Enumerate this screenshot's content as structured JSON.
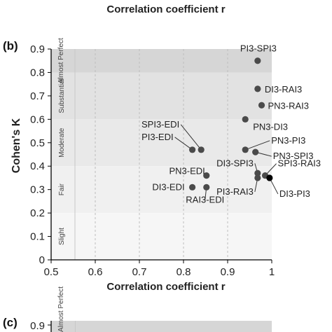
{
  "chart_data": [
    {
      "type": "scatter",
      "panel_label": "",
      "title": "",
      "xlabel": "Correlation coefficient r",
      "ylabel": "",
      "note": "top of image shows only the x-axis label of the panel above"
    },
    {
      "type": "scatter",
      "panel_label": "(b)",
      "title": "",
      "xlabel": "Correlation coefficient r",
      "ylabel": "Cohen's K",
      "xlim": [
        0.5,
        1.0
      ],
      "ylim": [
        0.0,
        0.9
      ],
      "x_ticks": [
        "0.5",
        "0.6",
        "0.7",
        "0.8",
        "0.9",
        "1"
      ],
      "y_ticks": [
        "0.9",
        "0.8",
        "0.7",
        "0.6",
        "0.5",
        "0.4",
        "0.3",
        "0.2",
        "0.1",
        "0"
      ],
      "grid": "vertical dashed at each x tick",
      "agreement_bands": [
        {
          "label": "Almost Perfect",
          "from": 0.8,
          "to": 0.9,
          "color": "#d6d6d6"
        },
        {
          "label": "Substantial",
          "from": 0.6,
          "to": 0.8,
          "color": "#e2e2e2"
        },
        {
          "label": "Moderate",
          "from": 0.4,
          "to": 0.6,
          "color": "#e9e9e9"
        },
        {
          "label": "Fair",
          "from": 0.2,
          "to": 0.4,
          "color": "#f0f0f0"
        },
        {
          "label": "Slight",
          "from": 0.0,
          "to": 0.2,
          "color": "#f6f6f6"
        }
      ],
      "points": [
        {
          "label": "PI3-SPI3",
          "x": 0.968,
          "y": 0.85
        },
        {
          "label": "DI3-RAI3",
          "x": 0.968,
          "y": 0.73
        },
        {
          "label": "PN3-RAI3",
          "x": 0.977,
          "y": 0.66
        },
        {
          "label": "PN3-DI3",
          "x": 0.94,
          "y": 0.6
        },
        {
          "label": "PN3-PI3",
          "x": 0.94,
          "y": 0.47
        },
        {
          "label": "PN3-SPI3",
          "x": 0.963,
          "y": 0.46
        },
        {
          "label": "DI3-SPI3",
          "x": 0.968,
          "y": 0.37
        },
        {
          "label": "SPI3-RAI3",
          "x": 0.985,
          "y": 0.36
        },
        {
          "label": "DI3-PI3",
          "x": 0.995,
          "y": 0.35
        },
        {
          "label": "PI3-RAI3",
          "x": 0.968,
          "y": 0.35
        },
        {
          "label": "SPI3-EDI",
          "x": 0.84,
          "y": 0.47
        },
        {
          "label": "PI3-EDI",
          "x": 0.82,
          "y": 0.47
        },
        {
          "label": "PN3-EDI",
          "x": 0.852,
          "y": 0.36
        },
        {
          "label": "DI3-EDI",
          "x": 0.82,
          "y": 0.31
        },
        {
          "label": "RAI3-EDI",
          "x": 0.852,
          "y": 0.31
        }
      ],
      "colors": {
        "point": "#4a4a4a",
        "highlight_point": "#000000",
        "axis": "#000000",
        "text": "#222222"
      }
    },
    {
      "type": "scatter",
      "panel_label": "(c)",
      "title": "",
      "xlabel": "",
      "ylabel": "",
      "y_ticks": [
        "0.9"
      ],
      "agreement_bands": [
        {
          "label": "Almost Perfect",
          "from": 0.8,
          "to": 0.9,
          "color": "#d6d6d6"
        }
      ],
      "note": "cropped at bottom of image"
    }
  ]
}
